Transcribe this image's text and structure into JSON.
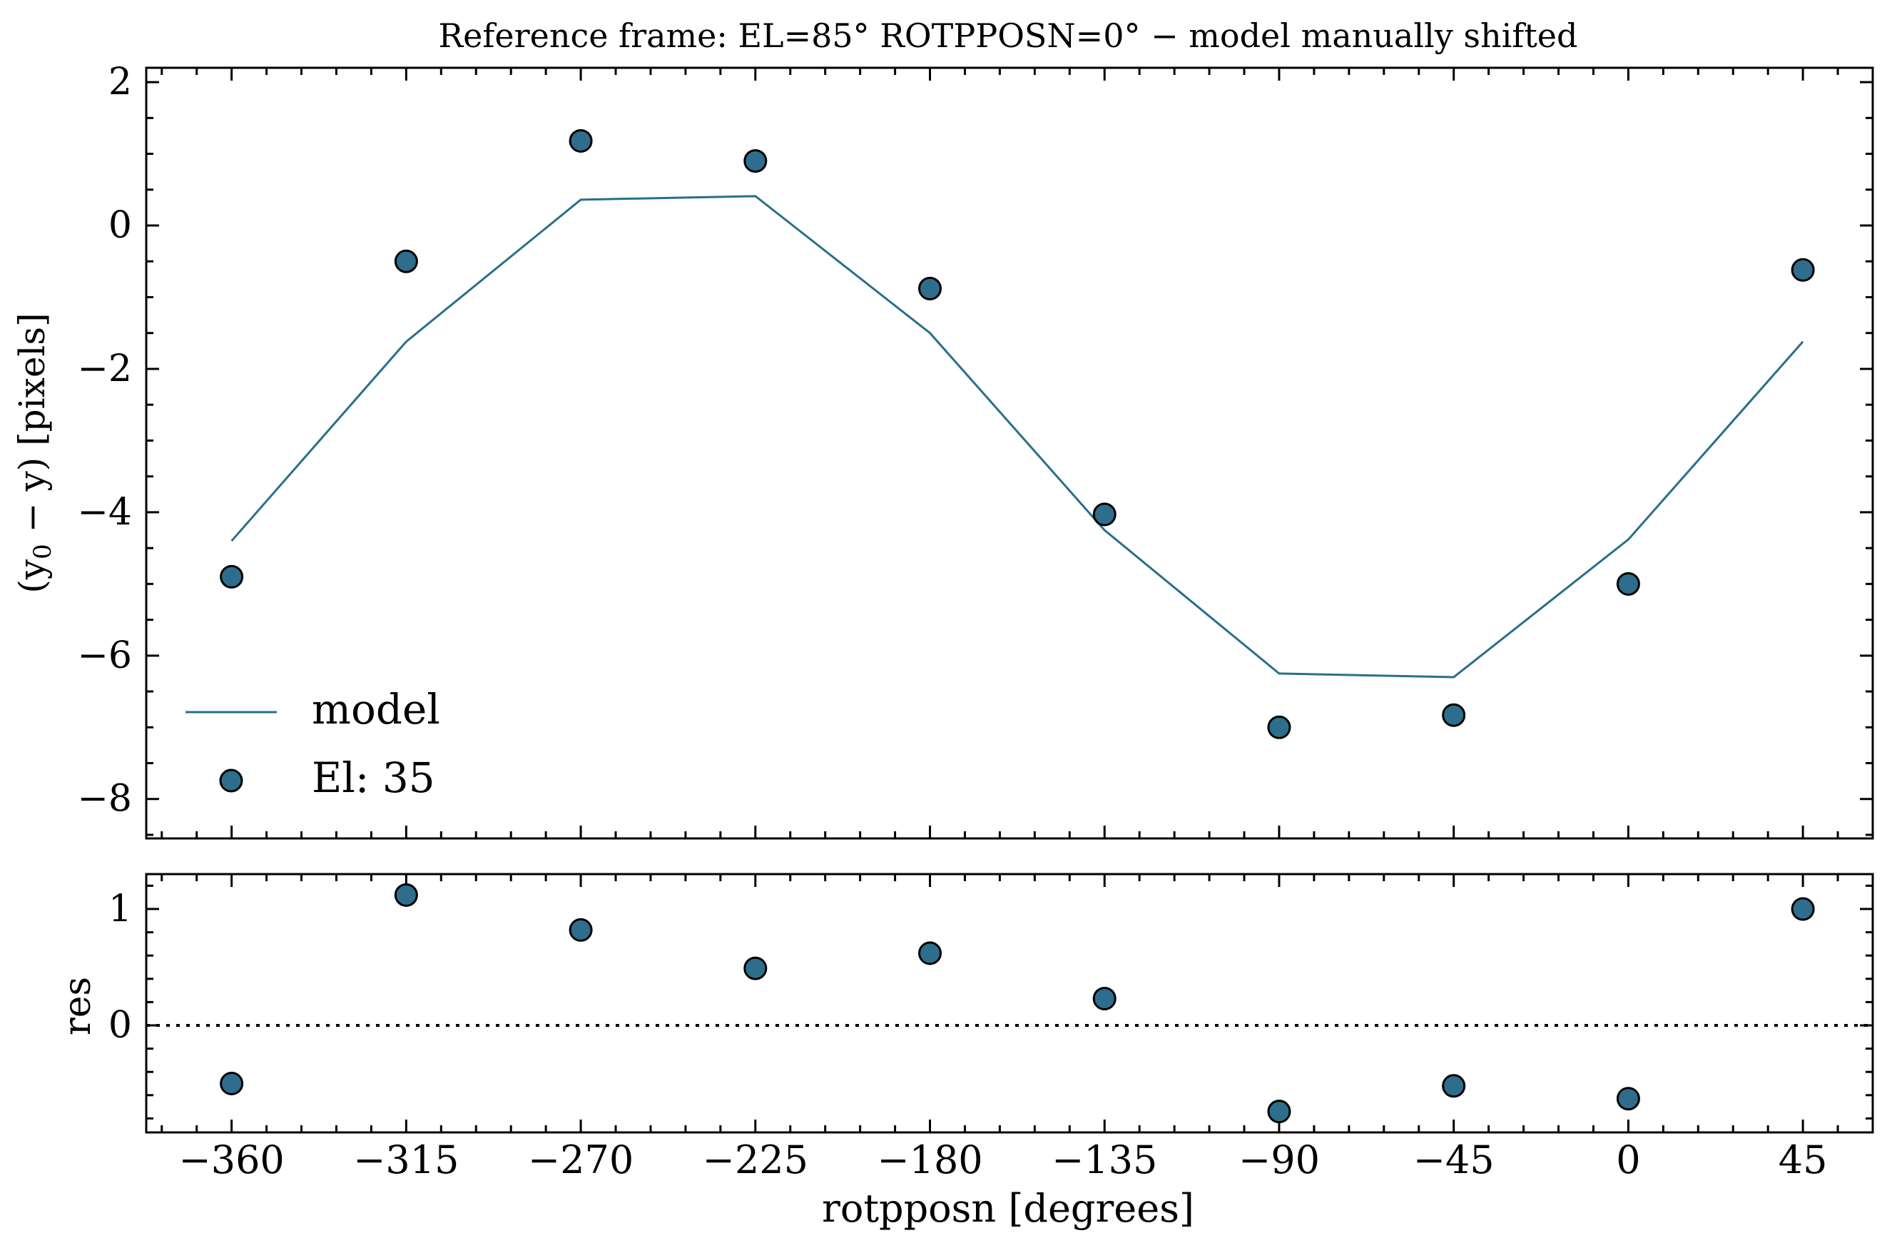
{
  "figure": {
    "title": "Reference frame: EL=85° ROTPPOSN=0° − model manually shifted"
  },
  "chart_data": [
    {
      "type": "line",
      "panel": "top",
      "ylabel_main": "(y",
      "ylabel_sub": "0",
      "ylabel_rest": " −  y) [pixels]",
      "xlim": [
        -382,
        63
      ],
      "ylim": [
        -8.55,
        2.2
      ],
      "yticks": [
        2,
        0,
        -2,
        -4,
        -6,
        -8
      ],
      "ytick_labels": [
        "2",
        "0",
        "−2",
        "−4",
        "−6",
        "−8"
      ],
      "minor_y_step": 0.5,
      "grid": false,
      "legend_position": "lower-left",
      "series": [
        {
          "name": "model",
          "kind": "line",
          "color": "#2a6f8a",
          "x": [
            -360,
            -315,
            -270,
            -225,
            -180,
            -135,
            -90,
            -45,
            0,
            45
          ],
          "y": [
            -4.4,
            -1.62,
            0.36,
            0.41,
            -1.5,
            -4.25,
            -6.25,
            -6.3,
            -4.38,
            -1.62
          ]
        },
        {
          "name": "El: 35",
          "kind": "scatter",
          "color": "#2e6e8c",
          "x": [
            -360,
            -315,
            -270,
            -225,
            -180,
            -135,
            -90,
            -45,
            0,
            45
          ],
          "y": [
            -4.9,
            -0.5,
            1.18,
            0.9,
            -0.88,
            -4.03,
            -7.0,
            -6.83,
            -5.0,
            -0.62
          ]
        }
      ]
    },
    {
      "type": "scatter",
      "panel": "bottom",
      "ylabel": "res",
      "xlabel": "rotpposn [degrees]",
      "xlim": [
        -382,
        63
      ],
      "ylim": [
        -0.92,
        1.3
      ],
      "xticks": [
        -360,
        -315,
        -270,
        -225,
        -180,
        -135,
        -90,
        -45,
        0,
        45
      ],
      "xtick_labels": [
        "−360",
        "−315",
        "−270",
        "−225",
        "−180",
        "−135",
        "−90",
        "−45",
        "0",
        "45"
      ],
      "minor_x_step": 9,
      "yticks": [
        1,
        0
      ],
      "ytick_labels": [
        "1",
        "0"
      ],
      "minor_y_step": 0.2,
      "reference_line": 0,
      "grid": false,
      "series": [
        {
          "name": "",
          "color": "#2e6e8c",
          "x": [
            -360,
            -315,
            -270,
            -225,
            -180,
            -135,
            -90,
            -45,
            0,
            45
          ],
          "y": [
            -0.5,
            1.12,
            0.82,
            0.49,
            0.62,
            0.23,
            -0.74,
            -0.52,
            -0.63,
            1.0
          ]
        }
      ]
    }
  ]
}
